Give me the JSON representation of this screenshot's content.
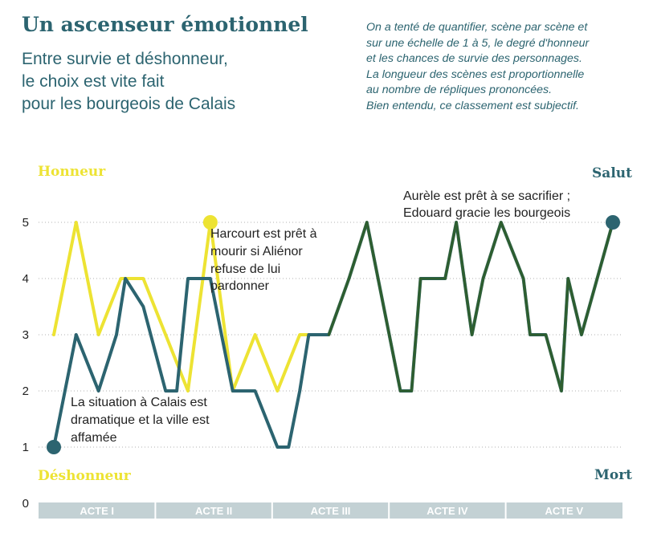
{
  "header": {
    "title": "Un ascenseur émotionnel",
    "subtitle_lines": [
      "Entre survie et déshonneur,",
      "le choix est vite fait",
      "pour les bourgeois de Calais"
    ],
    "note_lines": [
      "On a tenté de quantifier, scène par scène et",
      "sur une échelle de 1 à 5, le degré d'honneur",
      "et les chances de survie des personnages.",
      "La longueur des scènes est proportionnelle",
      "au nombre de répliques prononcées.",
      "Bien entendu, ce classement est subjectif."
    ]
  },
  "colors": {
    "honneur": "#ede333",
    "survie": "#2c6470",
    "overlap": "#2e5e2e",
    "text": "#2c6470",
    "acts_bar": "#c3d1d4",
    "acts_text": "#ffffff",
    "grid": "#b0b0b0"
  },
  "chart_data": {
    "type": "line",
    "title": "Un ascenseur émotionnel",
    "ylim": [
      0,
      5
    ],
    "y_ticks": [
      "0",
      "1",
      "2",
      "3",
      "4",
      "5"
    ],
    "grid": "dotted horizontal",
    "axis_labels": {
      "honneur_top": "Honneur",
      "honneur_bottom": "Déshonneur",
      "survie_top": "Salut",
      "survie_bottom": "Mort"
    },
    "acts": [
      "ACTE I",
      "ACTE II",
      "ACTE III",
      "ACTE IV",
      "ACTE V"
    ],
    "series": [
      {
        "key": "honneur",
        "points": [
          [
            0,
            3
          ],
          [
            1,
            5
          ],
          [
            2,
            3
          ],
          [
            3,
            4
          ],
          [
            4,
            4
          ],
          [
            5,
            3
          ],
          [
            6,
            2
          ],
          [
            7,
            5
          ],
          [
            8,
            2
          ],
          [
            9,
            3
          ],
          [
            10,
            2
          ],
          [
            11,
            3
          ],
          [
            11.5,
            3
          ],
          [
            12.3,
            3
          ],
          [
            13.2,
            4
          ],
          [
            14,
            5
          ],
          [
            15,
            3
          ],
          [
            15.5,
            2
          ],
          [
            16,
            2
          ],
          [
            16.4,
            4
          ],
          [
            17,
            4
          ],
          [
            17.5,
            4
          ],
          [
            18,
            5
          ],
          [
            18.7,
            3
          ],
          [
            19.2,
            4
          ],
          [
            20,
            5
          ],
          [
            21,
            4
          ],
          [
            21.3,
            3
          ],
          [
            22,
            3
          ],
          [
            22.7,
            2
          ],
          [
            23,
            4
          ],
          [
            23.6,
            3
          ],
          [
            24.3,
            4
          ],
          [
            25,
            5
          ]
        ]
      },
      {
        "key": "survie",
        "points": [
          [
            0,
            1
          ],
          [
            1,
            3
          ],
          [
            2,
            2
          ],
          [
            2.8,
            3
          ],
          [
            3.2,
            4
          ],
          [
            4,
            3.5
          ],
          [
            5,
            2
          ],
          [
            5.5,
            2
          ],
          [
            6,
            4
          ],
          [
            7,
            4
          ],
          [
            8,
            2
          ],
          [
            9,
            2
          ],
          [
            10,
            1
          ],
          [
            10.5,
            1
          ],
          [
            11,
            2
          ],
          [
            11.4,
            3
          ],
          [
            12.3,
            3
          ],
          [
            13.2,
            4
          ],
          [
            14,
            5
          ],
          [
            15,
            3
          ],
          [
            15.5,
            2
          ],
          [
            16,
            2
          ],
          [
            16.4,
            4
          ],
          [
            17,
            4
          ],
          [
            17.5,
            4
          ],
          [
            18,
            5
          ],
          [
            18.7,
            3
          ],
          [
            19.2,
            4
          ],
          [
            20,
            5
          ],
          [
            21,
            4
          ],
          [
            21.3,
            3
          ],
          [
            22,
            3
          ],
          [
            22.7,
            2
          ],
          [
            23,
            4
          ],
          [
            23.6,
            3
          ],
          [
            24.3,
            4
          ],
          [
            25,
            5
          ]
        ]
      }
    ],
    "annotations": [
      {
        "lines": [
          "La situation à Calais est",
          "dramatique et la ville est",
          "affamée"
        ]
      },
      {
        "lines": [
          "Harcourt est prêt à",
          "mourir si Aliénor",
          "refuse de lui",
          "pardonner"
        ]
      },
      {
        "lines": [
          "Aurèle est prêt à se sacrifier ;",
          "Edouard gracie les bourgeois"
        ]
      }
    ]
  }
}
